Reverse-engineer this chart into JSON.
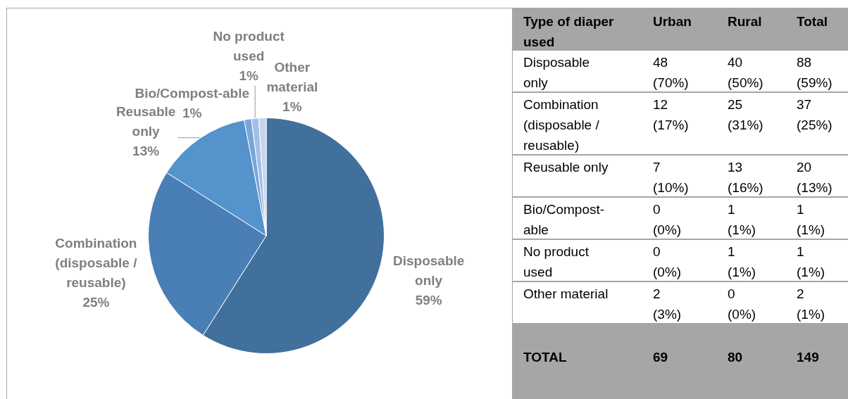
{
  "chart_data": [
    {
      "type": "pie",
      "categories": [
        "Disposable only",
        "Combination (disposable / reusable)",
        "Reusable only",
        "Bio/Compost-able",
        "No product used",
        "Other material"
      ],
      "values": [
        59,
        25,
        13,
        1,
        1,
        1
      ],
      "colors": [
        "#41709c",
        "#4a7fb5",
        "#5593cc",
        "#78a5da",
        "#a3bfe5",
        "#c5d5ed"
      ],
      "value_labels": [
        "59%",
        "25%",
        "13%",
        "1%",
        "1%",
        "1%"
      ]
    },
    {
      "type": "other",
      "ylabel": "Type of diaper used",
      "categories": [
        "Urban",
        "Rural",
        "Total"
      ],
      "y_categories": [
        "Disposable only",
        "Combination (disposable / reusable)",
        "Reusable only",
        "Bio/Compost-able",
        "No product used",
        "Other material",
        "TOTAL"
      ],
      "cell_labels": [
        [
          "48 (70%)",
          "40 (50%)",
          "88 (59%)"
        ],
        [
          "12 (17%)",
          "25 (31%)",
          "37 (25%)"
        ],
        [
          "7 (10%)",
          "13 (16%)",
          "20 (13%)"
        ],
        [
          "0 (0%)",
          "1 (1%)",
          "1 (1%)"
        ],
        [
          "0 (0%)",
          "1 (1%)",
          "1 (1%)"
        ],
        [
          "2 (3%)",
          "0 (0%)",
          "2 (1%)"
        ],
        [
          "69",
          "80",
          "149"
        ]
      ]
    }
  ]
}
